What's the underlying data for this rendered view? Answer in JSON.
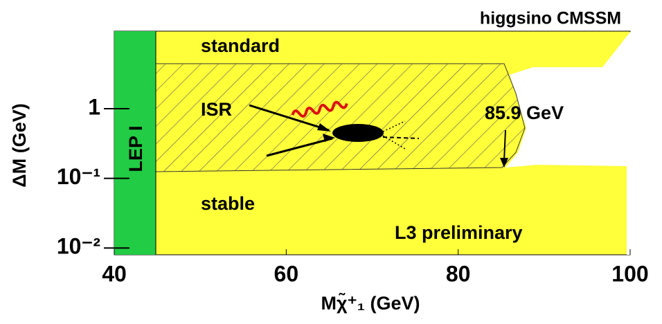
{
  "chart_data": {
    "type": "region",
    "title": "higgsino CMSSM",
    "x_label": "Mχ̃⁺₁ (GeV)",
    "y_label": "ΔM (GeV)",
    "xlim": [
      40,
      100
    ],
    "xticks": [
      40,
      60,
      80,
      100
    ],
    "ylim": [
      0.008,
      13
    ],
    "y_log": true,
    "yticks": [
      {
        "value": 1,
        "label": "1"
      },
      {
        "value": 0.1,
        "label": "10⁻¹"
      },
      {
        "value": 0.01,
        "label": "10⁻²"
      }
    ],
    "annotations": [
      "standard",
      "ISR",
      "stable",
      "LEP I",
      "85.9 GeV",
      "L3 preliminary"
    ]
  }
}
